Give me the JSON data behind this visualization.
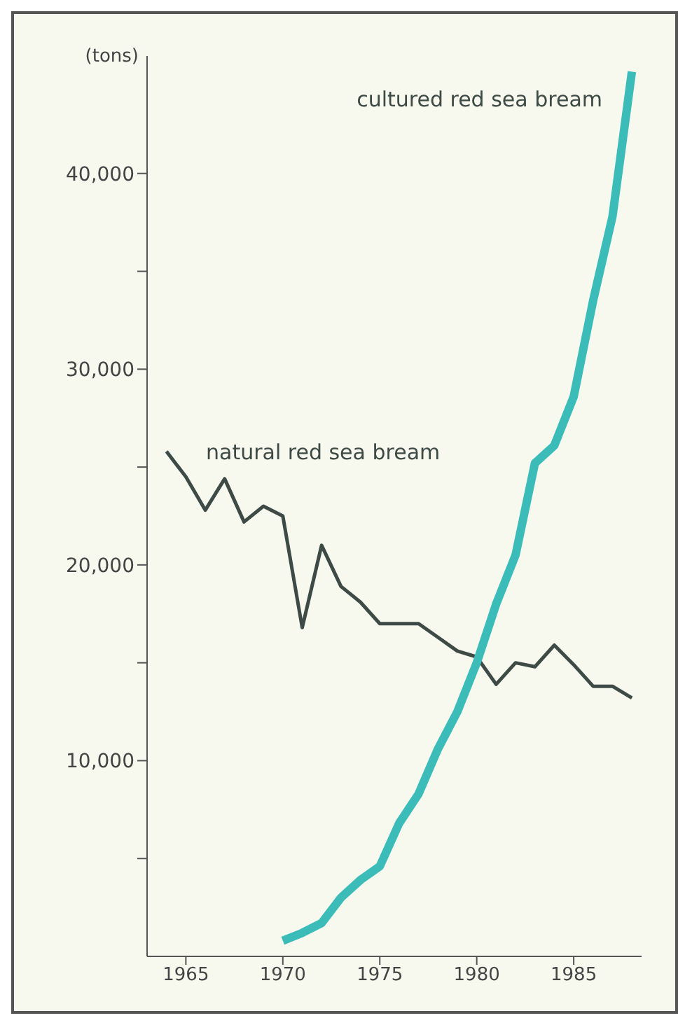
{
  "chart_data": {
    "type": "line",
    "ylabel": "(tons)",
    "x": [
      1964,
      1965,
      1966,
      1967,
      1968,
      1969,
      1970,
      1971,
      1972,
      1973,
      1974,
      1975,
      1976,
      1977,
      1978,
      1979,
      1980,
      1981,
      1982,
      1983,
      1984,
      1985,
      1986,
      1987,
      1988
    ],
    "series": [
      {
        "color": "#3d4a45",
        "values": [
          25800,
          24500,
          22800,
          24400,
          22200,
          23000,
          22500,
          16800,
          21000,
          18900,
          18100,
          17000,
          17000,
          17000,
          16300,
          15600,
          15300,
          13900,
          15000,
          14800,
          15900,
          14900,
          13800,
          13800,
          13200
        ]
      },
      {
        "color": "#3bbcb8",
        "values": [
          null,
          null,
          null,
          null,
          null,
          null,
          800,
          1200,
          1700,
          3000,
          3900,
          4600,
          6800,
          8300,
          10600,
          12500,
          15000,
          18000,
          20500,
          25200,
          26100,
          28600,
          33500,
          37800,
          45200
        ]
      }
    ],
    "xlim": [
      1963,
      1988.5
    ],
    "xticks": [
      1965,
      1970,
      1975,
      1980,
      1985
    ],
    "ylim": [
      0,
      46000
    ],
    "yticks": [
      {
        "value": 5000,
        "label": null
      },
      {
        "value": 10000,
        "label": "10,000"
      },
      {
        "value": 15000,
        "label": null
      },
      {
        "value": 20000,
        "label": "20,000"
      },
      {
        "value": 25000,
        "label": null
      },
      {
        "value": 30000,
        "label": "30,000"
      },
      {
        "value": 35000,
        "label": null
      },
      {
        "value": 40000,
        "label": "40,000"
      }
    ],
    "annotations": [
      "cultured red sea bream",
      "natural red sea bream"
    ],
    "grid": false,
    "legend": false,
    "marker": "none",
    "line_style": "solid"
  }
}
